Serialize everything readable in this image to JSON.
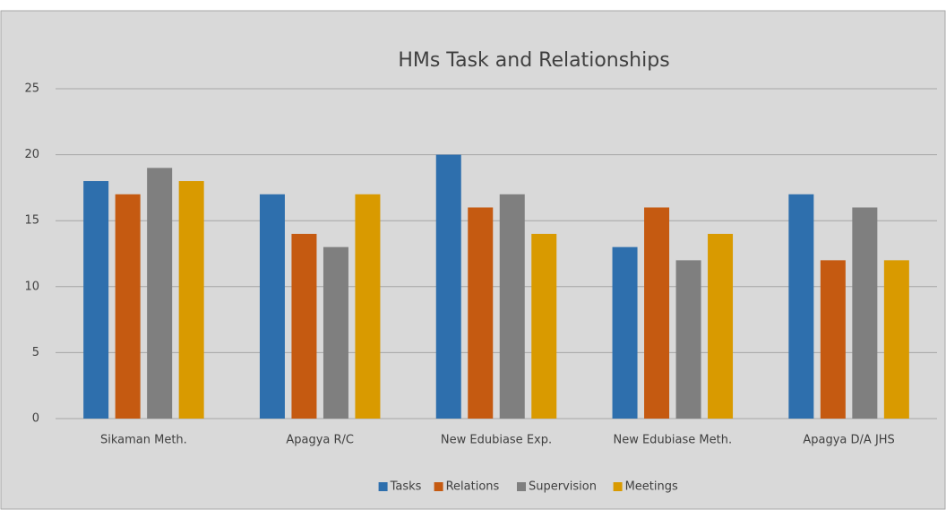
{
  "chart_data": {
    "type": "bar",
    "title": "HMs Task and Relationships",
    "categories": [
      "Sikaman Meth.",
      "Apagya R/C",
      "New Edubiase Exp.",
      "New Edubiase Meth.",
      "Apagya D/A JHS"
    ],
    "series": [
      {
        "name": "Tasks",
        "color": "#2e6fad",
        "values": [
          18,
          17,
          20,
          13,
          17
        ]
      },
      {
        "name": "Relations",
        "color": "#c55a11",
        "values": [
          17,
          14,
          16,
          16,
          12
        ]
      },
      {
        "name": "Supervision",
        "color": "#7f7f7f",
        "values": [
          19,
          13,
          17,
          12,
          16
        ]
      },
      {
        "name": "Meetings",
        "color": "#d99a00",
        "values": [
          18,
          17,
          14,
          14,
          12
        ]
      }
    ],
    "ylim": [
      0,
      25
    ],
    "yticks": [
      0,
      5,
      10,
      15,
      20,
      25
    ],
    "grid": true,
    "legend": "bottom"
  }
}
